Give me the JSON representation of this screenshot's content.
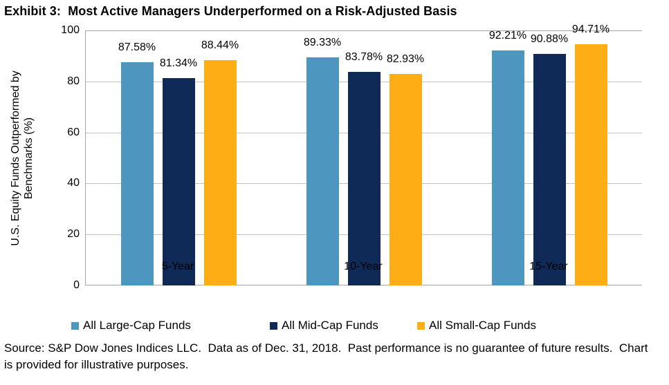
{
  "title": "Exhibit 3:  Most Active Managers Underperformed on a Risk-Adjusted Basis",
  "chart_data": {
    "type": "bar",
    "categories": [
      "5-Year",
      "10-Year",
      "15-Year"
    ],
    "series": [
      {
        "name": "All Large-Cap Funds",
        "color": "#4D96C0",
        "values": [
          87.58,
          89.33,
          92.21
        ],
        "labels": [
          "87.58%",
          "89.33%",
          "92.21%"
        ]
      },
      {
        "name": "All Mid-Cap Funds",
        "color": "#0F2A57",
        "values": [
          81.34,
          83.78,
          90.88
        ],
        "labels": [
          "81.34%",
          "83.78%",
          "90.88%"
        ]
      },
      {
        "name": "All Small-Cap Funds",
        "color": "#FFAD14",
        "values": [
          88.44,
          82.93,
          94.71
        ],
        "labels": [
          "88.44%",
          "82.93%",
          "94.71%"
        ]
      }
    ],
    "ylabel": "U.S. Equity Funds Outperformed by Benchmarks (%)",
    "ylabel_lines": [
      "U.S. Equity Funds Outperformed by",
      "Benchmarks (%)"
    ],
    "xlabel": "",
    "ylim": [
      0,
      100
    ],
    "yticks": [
      0,
      20,
      40,
      60,
      80,
      100
    ],
    "grid": "horizontal",
    "legend_position": "bottom",
    "colors": {
      "gridline": "#c3c3c3",
      "axis": "#a6a6a6",
      "text": "#000000"
    }
  },
  "source_note": "Source: S&P Dow Jones Indices LLC.  Data as of Dec. 31, 2018.  Past performance is no guarantee of future results.  Chart is provided for illustrative purposes."
}
